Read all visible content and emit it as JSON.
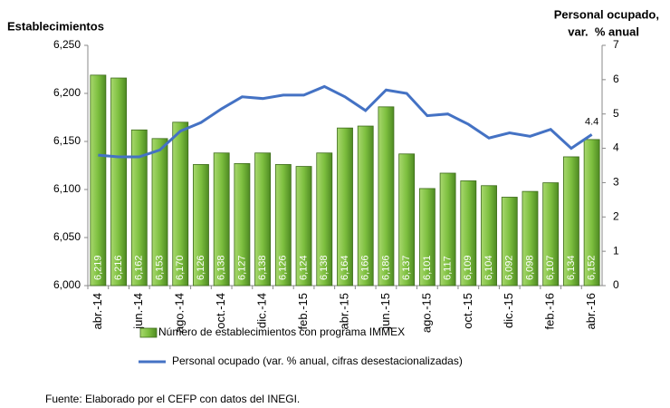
{
  "chart_data": {
    "type": "bar-line",
    "y_label": "Establecimientos",
    "y2_label": [
      "Personal ocupado,",
      "var.  % anual"
    ],
    "source": "Fuente: Elaborado por el CEFP con datos del INEGI.",
    "categories": [
      "abr.-14",
      null,
      "jun.-14",
      null,
      "ago.-14",
      null,
      "oct.-14",
      null,
      "dic.-14",
      null,
      "feb.-15",
      null,
      "abr.-15",
      null,
      "jun.-15",
      null,
      "ago.-15",
      null,
      "oct.-15",
      null,
      "dic.-15",
      null,
      "feb.-16",
      null,
      "abr.-16"
    ],
    "series": [
      {
        "name": "Número de establecimientos con programa IMMEX",
        "type": "bar",
        "color": "#7dbf3f",
        "values": [
          6219,
          6216,
          6162,
          6153,
          6170,
          6126,
          6138,
          6127,
          6138,
          6126,
          6124,
          6138,
          6164,
          6166,
          6186,
          6137,
          6101,
          6117,
          6109,
          6104,
          6092,
          6098,
          6107,
          6134,
          6152
        ],
        "value_labels": [
          "6,219",
          "6,216",
          "6,162",
          "6,153",
          "6,170",
          "6,126",
          "6,138",
          "6,127",
          "6,138",
          "6,126",
          "6,124",
          "6,138",
          "6,164",
          "6,166",
          "6,186",
          "6,137",
          "6,101",
          "6,117",
          "6,109",
          "6,104",
          "6,092",
          "6,098",
          "6,107",
          "6,134",
          "6,152"
        ]
      },
      {
        "name": "Personal ocupado (var. % anual, cifras desestacionalizadas)",
        "type": "line",
        "color": "#4472c4",
        "axis": "y2",
        "values": [
          3.8,
          3.75,
          3.75,
          3.95,
          4.5,
          4.75,
          5.15,
          5.5,
          5.45,
          5.55,
          5.55,
          5.8,
          5.5,
          5.1,
          5.7,
          5.6,
          4.95,
          5.0,
          4.7,
          4.3,
          4.45,
          4.35,
          4.55,
          4.0,
          4.4
        ]
      }
    ],
    "ylim": [
      6000,
      6250
    ],
    "yticks": [
      {
        "value": 6000,
        "label": "6,000"
      },
      {
        "value": 6050,
        "label": "6,050"
      },
      {
        "value": 6100,
        "label": "6,100"
      },
      {
        "value": 6150,
        "label": "6,150"
      },
      {
        "value": 6200,
        "label": "6,200"
      },
      {
        "value": 6250,
        "label": "6,250"
      }
    ],
    "y2lim": [
      0,
      7
    ],
    "y2ticks": [
      0,
      1,
      2,
      3,
      4,
      5,
      6,
      7
    ]
  }
}
